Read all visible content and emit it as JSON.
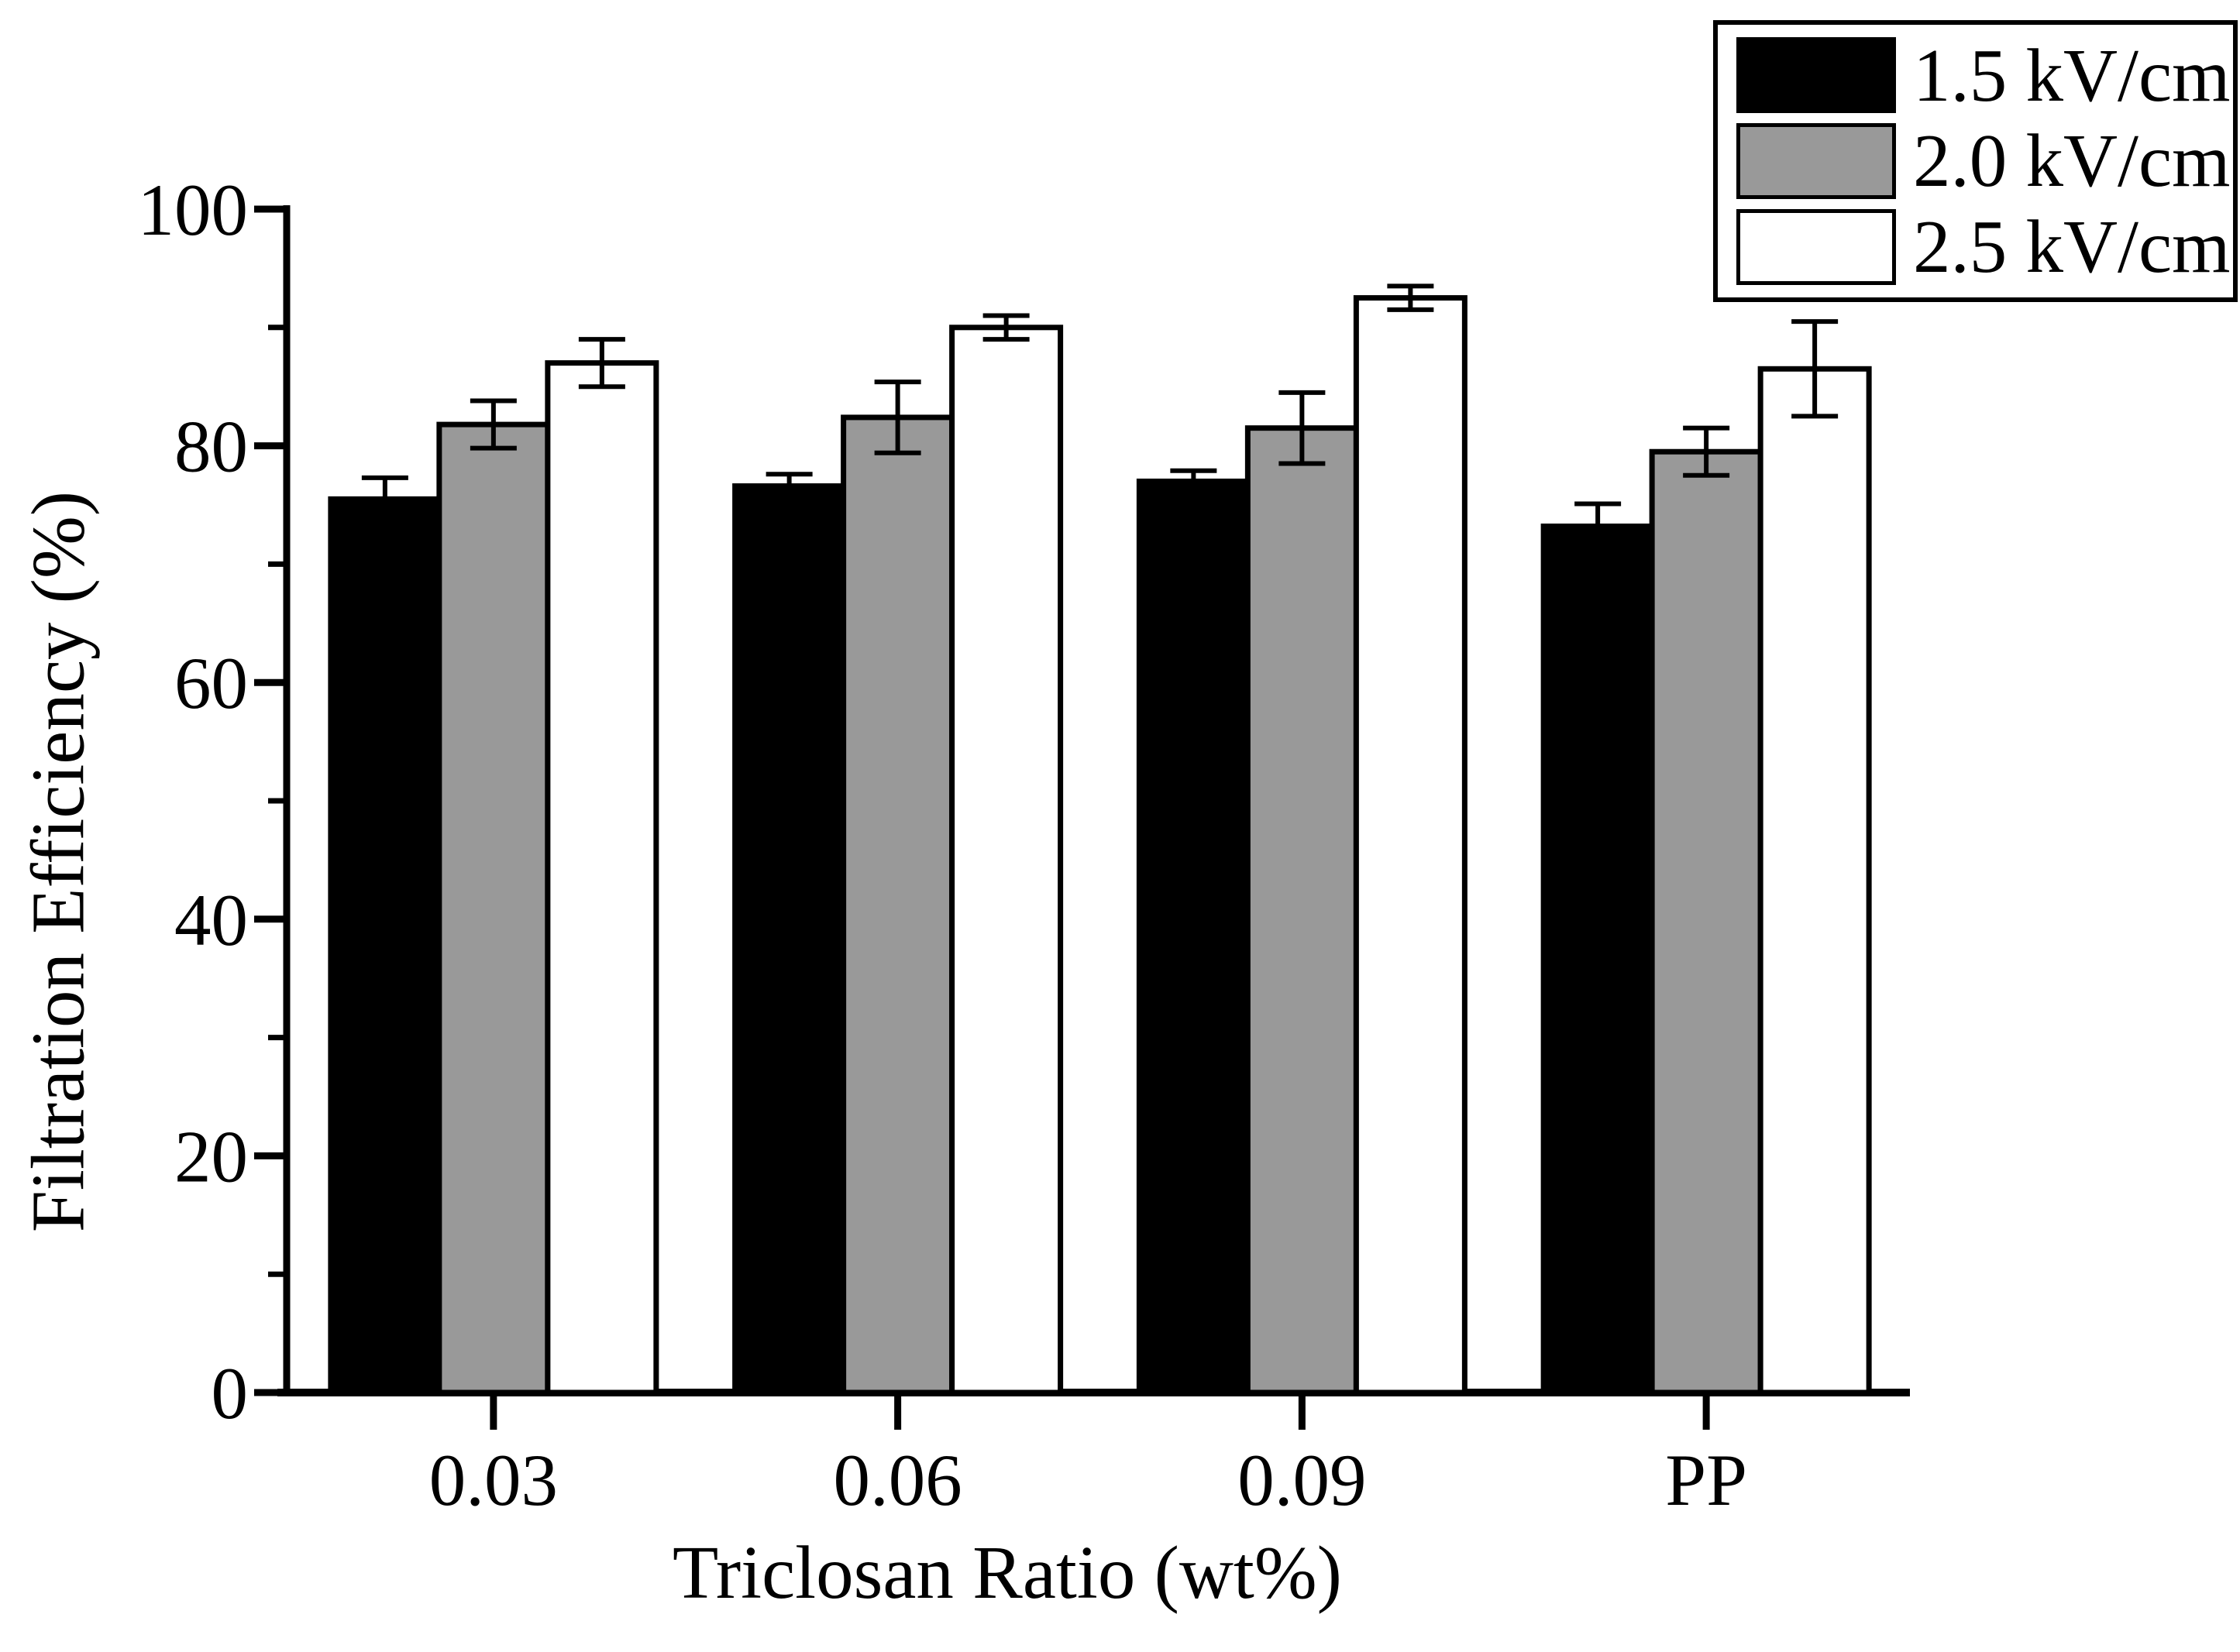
{
  "chart_data": {
    "type": "bar",
    "title": "",
    "xlabel": "Triclosan Ratio (wt%)",
    "ylabel": "Filtration Efficiency (%)",
    "categories": [
      "0.03",
      "0.06",
      "0.09",
      "PP"
    ],
    "series": [
      {
        "name": "1.5 kV/cm",
        "color": "#000000",
        "values": [
          75.5,
          76.6,
          77.0,
          73.2
        ],
        "errors": [
          1.8,
          1.0,
          0.9,
          1.9
        ]
      },
      {
        "name": "2.0 kV/cm",
        "color": "#999999",
        "values": [
          81.8,
          82.4,
          81.5,
          79.5
        ],
        "errors": [
          2.0,
          3.0,
          3.0,
          2.0
        ]
      },
      {
        "name": "2.5 kV/cm",
        "color": "#ffffff",
        "values": [
          87.0,
          90.0,
          92.5,
          86.5
        ],
        "errors": [
          2.0,
          1.0,
          1.0,
          4.0
        ]
      }
    ],
    "ylim": [
      0,
      100
    ],
    "y_major_ticks": [
      0,
      20,
      40,
      60,
      80,
      100
    ],
    "y_minor_ticks": [
      10,
      30,
      50,
      70,
      90
    ],
    "legend_position": "top-right",
    "grid": false,
    "error_bars": true,
    "bar_edge_color": "#000000",
    "axis_color": "#000000",
    "background_color": "#ffffff"
  }
}
